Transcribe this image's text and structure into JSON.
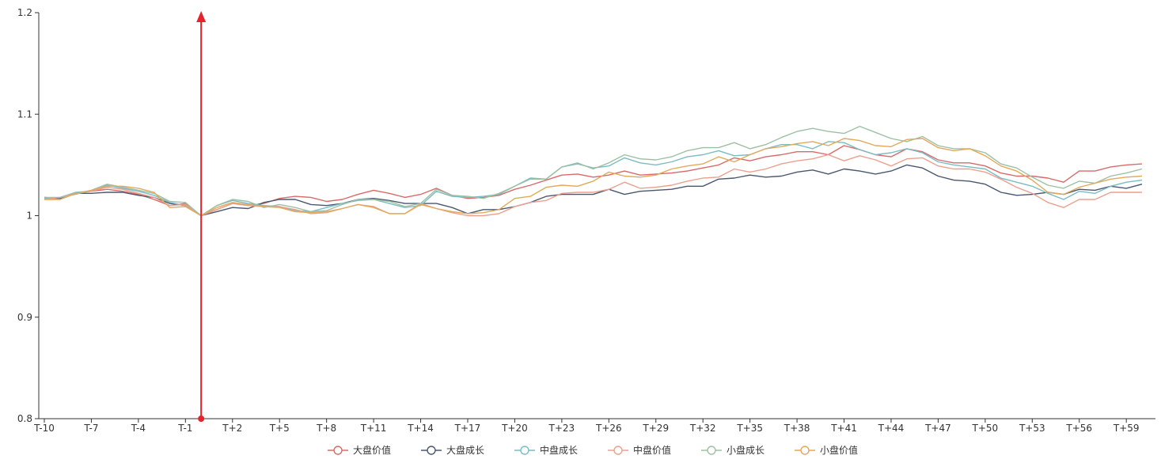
{
  "chart_data": {
    "type": "line",
    "title": "",
    "xlabel": "",
    "ylabel": "",
    "ylim": [
      0.8,
      1.2
    ],
    "y_ticks": [
      "0.8",
      "0.9",
      "1",
      "1.1",
      "1.2"
    ],
    "x": [
      "T-10",
      "T-9",
      "T-8",
      "T-7",
      "T-6",
      "T-5",
      "T-4",
      "T-3",
      "T-2",
      "T-1",
      "T",
      "T+1",
      "T+2",
      "T+3",
      "T+4",
      "T+5",
      "T+6",
      "T+7",
      "T+8",
      "T+9",
      "T+10",
      "T+11",
      "T+12",
      "T+13",
      "T+14",
      "T+15",
      "T+16",
      "T+17",
      "T+18",
      "T+19",
      "T+20",
      "T+21",
      "T+22",
      "T+23",
      "T+24",
      "T+25",
      "T+26",
      "T+27",
      "T+28",
      "T+29",
      "T+30",
      "T+31",
      "T+32",
      "T+33",
      "T+34",
      "T+35",
      "T+36",
      "T+37",
      "T+38",
      "T+39",
      "T+40",
      "T+41",
      "T+42",
      "T+43",
      "T+44",
      "T+45",
      "T+46",
      "T+47",
      "T+48",
      "T+49",
      "T+50",
      "T+51",
      "T+52",
      "T+53",
      "T+54",
      "T+55",
      "T+56",
      "T+57",
      "T+58",
      "T+59",
      "T+60"
    ],
    "x_tick_labels": [
      "T-10",
      "T-7",
      "T-4",
      "T-1",
      "T+2",
      "T+5",
      "T+8",
      "T+11",
      "T+14",
      "T+17",
      "T+20",
      "T+23",
      "T+26",
      "T+29",
      "T+32",
      "T+35",
      "T+38",
      "T+41",
      "T+44",
      "T+47",
      "T+50",
      "T+53",
      "T+56",
      "T+59"
    ],
    "event_marker": {
      "x": "T",
      "y_from": 0.8,
      "y_to": 1.2,
      "color": "#e8222b"
    },
    "grid": false,
    "legend_position": "bottom",
    "series": [
      {
        "name": "大盘价值",
        "color": "#d86a6a",
        "values": [
          1.018,
          1.016,
          1.022,
          1.024,
          1.026,
          1.024,
          1.021,
          1.016,
          1.01,
          1.012,
          1.0,
          1.006,
          1.012,
          1.01,
          1.012,
          1.017,
          1.019,
          1.018,
          1.014,
          1.016,
          1.021,
          1.025,
          1.022,
          1.018,
          1.021,
          1.027,
          1.02,
          1.017,
          1.018,
          1.02,
          1.026,
          1.03,
          1.035,
          1.04,
          1.041,
          1.038,
          1.04,
          1.044,
          1.04,
          1.041,
          1.042,
          1.044,
          1.047,
          1.05,
          1.057,
          1.054,
          1.058,
          1.06,
          1.063,
          1.063,
          1.06,
          1.069,
          1.065,
          1.06,
          1.058,
          1.066,
          1.063,
          1.055,
          1.052,
          1.052,
          1.049,
          1.042,
          1.039,
          1.039,
          1.037,
          1.033,
          1.044,
          1.044,
          1.048,
          1.05,
          1.051
        ]
      },
      {
        "name": "大盘成长",
        "color": "#4a5770",
        "values": [
          1.018,
          1.017,
          1.022,
          1.022,
          1.023,
          1.023,
          1.02,
          1.018,
          1.012,
          1.01,
          1.0,
          1.004,
          1.008,
          1.007,
          1.013,
          1.016,
          1.016,
          1.011,
          1.01,
          1.012,
          1.016,
          1.017,
          1.015,
          1.012,
          1.012,
          1.012,
          1.008,
          1.002,
          1.006,
          1.006,
          1.009,
          1.013,
          1.019,
          1.021,
          1.021,
          1.021,
          1.026,
          1.021,
          1.024,
          1.025,
          1.026,
          1.029,
          1.029,
          1.036,
          1.037,
          1.04,
          1.038,
          1.039,
          1.043,
          1.045,
          1.041,
          1.046,
          1.044,
          1.041,
          1.044,
          1.05,
          1.047,
          1.039,
          1.035,
          1.034,
          1.031,
          1.023,
          1.02,
          1.021,
          1.023,
          1.021,
          1.026,
          1.025,
          1.029,
          1.027,
          1.031
        ]
      },
      {
        "name": "中盘成长",
        "color": "#7bbcc4",
        "values": [
          1.017,
          1.018,
          1.023,
          1.024,
          1.03,
          1.027,
          1.024,
          1.02,
          1.013,
          1.01,
          1.0,
          1.01,
          1.015,
          1.012,
          1.01,
          1.009,
          1.005,
          1.004,
          1.008,
          1.012,
          1.015,
          1.016,
          1.012,
          1.008,
          1.01,
          1.024,
          1.019,
          1.018,
          1.019,
          1.021,
          1.029,
          1.037,
          1.036,
          1.048,
          1.051,
          1.047,
          1.049,
          1.057,
          1.052,
          1.05,
          1.053,
          1.058,
          1.06,
          1.064,
          1.059,
          1.06,
          1.066,
          1.07,
          1.07,
          1.066,
          1.073,
          1.072,
          1.065,
          1.06,
          1.062,
          1.066,
          1.062,
          1.053,
          1.05,
          1.048,
          1.046,
          1.037,
          1.033,
          1.029,
          1.022,
          1.016,
          1.024,
          1.022,
          1.029,
          1.033,
          1.035
        ]
      },
      {
        "name": "中盘价值",
        "color": "#eba08e",
        "values": [
          1.016,
          1.018,
          1.022,
          1.024,
          1.028,
          1.026,
          1.022,
          1.018,
          1.01,
          1.011,
          1.0,
          1.006,
          1.012,
          1.01,
          1.009,
          1.009,
          1.006,
          1.002,
          1.003,
          1.007,
          1.011,
          1.009,
          1.002,
          1.002,
          1.012,
          1.007,
          1.003,
          1.0,
          1.0,
          1.002,
          1.009,
          1.013,
          1.015,
          1.022,
          1.023,
          1.023,
          1.026,
          1.033,
          1.027,
          1.028,
          1.03,
          1.034,
          1.037,
          1.038,
          1.046,
          1.043,
          1.046,
          1.051,
          1.054,
          1.056,
          1.06,
          1.054,
          1.059,
          1.055,
          1.049,
          1.056,
          1.057,
          1.049,
          1.046,
          1.046,
          1.043,
          1.036,
          1.028,
          1.022,
          1.013,
          1.008,
          1.016,
          1.016,
          1.023,
          1.023,
          1.023
        ]
      },
      {
        "name": "小盘成长",
        "color": "#9dc0a4",
        "values": [
          1.018,
          1.018,
          1.021,
          1.025,
          1.031,
          1.028,
          1.025,
          1.022,
          1.014,
          1.013,
          1.0,
          1.01,
          1.016,
          1.014,
          1.008,
          1.011,
          1.008,
          1.004,
          1.005,
          1.011,
          1.016,
          1.016,
          1.014,
          1.009,
          1.012,
          1.026,
          1.02,
          1.019,
          1.017,
          1.022,
          1.029,
          1.036,
          1.036,
          1.048,
          1.052,
          1.046,
          1.052,
          1.06,
          1.056,
          1.055,
          1.058,
          1.064,
          1.067,
          1.067,
          1.072,
          1.066,
          1.07,
          1.077,
          1.083,
          1.086,
          1.083,
          1.081,
          1.088,
          1.082,
          1.076,
          1.073,
          1.078,
          1.069,
          1.066,
          1.066,
          1.062,
          1.051,
          1.047,
          1.038,
          1.03,
          1.027,
          1.034,
          1.032,
          1.039,
          1.042,
          1.046
        ]
      },
      {
        "name": "小盘价值",
        "color": "#e3a95a",
        "values": [
          1.016,
          1.016,
          1.022,
          1.025,
          1.029,
          1.029,
          1.027,
          1.023,
          1.008,
          1.009,
          1.0,
          1.008,
          1.013,
          1.011,
          1.009,
          1.008,
          1.004,
          1.003,
          1.004,
          1.007,
          1.011,
          1.008,
          1.002,
          1.002,
          1.011,
          1.007,
          1.004,
          1.002,
          1.003,
          1.006,
          1.017,
          1.019,
          1.028,
          1.03,
          1.029,
          1.034,
          1.043,
          1.039,
          1.038,
          1.04,
          1.046,
          1.049,
          1.051,
          1.058,
          1.053,
          1.06,
          1.066,
          1.068,
          1.071,
          1.073,
          1.069,
          1.076,
          1.074,
          1.069,
          1.068,
          1.075,
          1.076,
          1.067,
          1.064,
          1.066,
          1.059,
          1.049,
          1.044,
          1.035,
          1.023,
          1.021,
          1.028,
          1.032,
          1.036,
          1.038,
          1.039
        ]
      }
    ]
  }
}
